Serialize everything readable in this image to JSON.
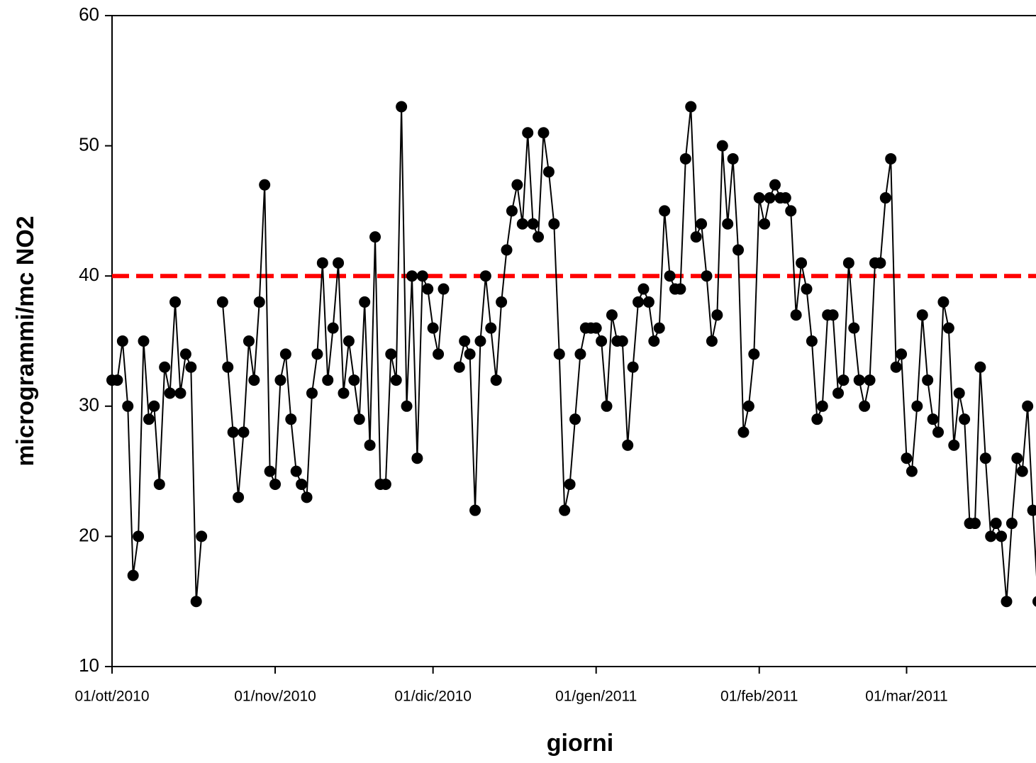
{
  "chart_data": {
    "type": "line",
    "x_label": "giorni",
    "y_label": "microgrammi/mc NO2",
    "x": [
      "2010-10-01",
      "2010-10-02",
      "2010-10-03",
      "2010-10-04",
      "2010-10-05",
      "2010-10-06",
      "2010-10-07",
      "2010-10-08",
      "2010-10-09",
      "2010-10-10",
      "2010-10-11",
      "2010-10-12",
      "2010-10-13",
      "2010-10-14",
      "2010-10-15",
      "2010-10-16",
      "2010-10-17",
      "2010-10-18",
      "2010-10-19",
      "2010-10-20",
      "2010-10-21",
      "2010-10-22",
      "2010-10-23",
      "2010-10-24",
      "2010-10-25",
      "2010-10-26",
      "2010-10-27",
      "2010-10-28",
      "2010-10-29",
      "2010-10-30",
      "2010-10-31",
      "2010-11-01",
      "2010-11-02",
      "2010-11-03",
      "2010-11-04",
      "2010-11-05",
      "2010-11-06",
      "2010-11-07",
      "2010-11-08",
      "2010-11-09",
      "2010-11-10",
      "2010-11-11",
      "2010-11-12",
      "2010-11-13",
      "2010-11-14",
      "2010-11-15",
      "2010-11-16",
      "2010-11-17",
      "2010-11-18",
      "2010-11-19",
      "2010-11-20",
      "2010-11-21",
      "2010-11-22",
      "2010-11-23",
      "2010-11-24",
      "2010-11-25",
      "2010-11-26",
      "2010-11-27",
      "2010-11-28",
      "2010-11-29",
      "2010-11-30",
      "2010-12-01",
      "2010-12-02",
      "2010-12-03",
      "2010-12-04",
      "2010-12-05",
      "2010-12-06",
      "2010-12-07",
      "2010-12-08",
      "2010-12-09",
      "2010-12-10",
      "2010-12-11",
      "2010-12-12",
      "2010-12-13",
      "2010-12-14",
      "2010-12-15",
      "2010-12-16",
      "2010-12-17",
      "2010-12-18",
      "2010-12-19",
      "2010-12-20",
      "2010-12-21",
      "2010-12-22",
      "2010-12-23",
      "2010-12-24",
      "2010-12-25",
      "2010-12-26",
      "2010-12-27",
      "2010-12-28",
      "2010-12-29",
      "2010-12-30",
      "2010-12-31",
      "2011-01-01",
      "2011-01-02",
      "2011-01-03",
      "2011-01-04",
      "2011-01-05",
      "2011-01-06",
      "2011-01-07",
      "2011-01-08",
      "2011-01-09",
      "2011-01-10",
      "2011-01-11",
      "2011-01-12",
      "2011-01-13",
      "2011-01-14",
      "2011-01-15",
      "2011-01-16",
      "2011-01-17",
      "2011-01-18",
      "2011-01-19",
      "2011-01-20",
      "2011-01-21",
      "2011-01-22",
      "2011-01-23",
      "2011-01-24",
      "2011-01-25",
      "2011-01-26",
      "2011-01-27",
      "2011-01-28",
      "2011-01-29",
      "2011-01-30",
      "2011-01-31",
      "2011-02-01",
      "2011-02-02",
      "2011-02-03",
      "2011-02-04",
      "2011-02-05",
      "2011-02-06",
      "2011-02-07",
      "2011-02-08",
      "2011-02-09",
      "2011-02-10",
      "2011-02-11",
      "2011-02-12",
      "2011-02-13",
      "2011-02-14",
      "2011-02-15",
      "2011-02-16",
      "2011-02-17",
      "2011-02-18",
      "2011-02-19",
      "2011-02-20",
      "2011-02-21",
      "2011-02-22",
      "2011-02-23",
      "2011-02-24",
      "2011-02-25",
      "2011-02-26",
      "2011-02-27",
      "2011-02-28",
      "2011-03-01",
      "2011-03-02",
      "2011-03-03",
      "2011-03-04",
      "2011-03-05",
      "2011-03-06",
      "2011-03-07",
      "2011-03-08",
      "2011-03-09",
      "2011-03-10",
      "2011-03-11",
      "2011-03-12",
      "2011-03-13",
      "2011-03-14",
      "2011-03-15",
      "2011-03-16",
      "2011-03-17",
      "2011-03-18",
      "2011-03-19",
      "2011-03-20",
      "2011-03-21",
      "2011-03-22",
      "2011-03-23",
      "2011-03-24",
      "2011-03-25",
      "2011-03-26"
    ],
    "values": [
      32,
      32,
      35,
      30,
      17,
      20,
      35,
      29,
      30,
      24,
      33,
      31,
      38,
      31,
      34,
      33,
      15,
      20,
      null,
      null,
      null,
      38,
      33,
      28,
      23,
      28,
      35,
      32,
      38,
      47,
      25,
      24,
      32,
      34,
      29,
      25,
      24,
      23,
      31,
      34,
      41,
      32,
      36,
      41,
      31,
      35,
      32,
      29,
      38,
      27,
      43,
      24,
      24,
      34,
      32,
      53,
      30,
      40,
      26,
      40,
      39,
      36,
      34,
      39,
      null,
      null,
      33,
      35,
      34,
      22,
      35,
      40,
      36,
      32,
      38,
      42,
      45,
      47,
      44,
      51,
      44,
      43,
      51,
      48,
      44,
      34,
      22,
      24,
      29,
      34,
      36,
      36,
      36,
      35,
      30,
      37,
      35,
      35,
      27,
      33,
      38,
      39,
      38,
      35,
      36,
      45,
      40,
      39,
      39,
      49,
      53,
      43,
      44,
      40,
      35,
      37,
      50,
      44,
      49,
      42,
      28,
      30,
      34,
      46,
      44,
      46,
      47,
      46,
      46,
      45,
      37,
      41,
      39,
      35,
      29,
      30,
      37,
      37,
      31,
      32,
      41,
      36,
      32,
      30,
      32,
      41,
      41,
      46,
      49,
      33,
      34,
      26,
      25,
      30,
      37,
      32,
      29,
      28,
      38,
      36,
      27,
      31,
      29,
      21,
      21,
      33,
      26,
      20,
      21,
      20,
      15,
      21,
      26,
      25,
      30,
      22,
      15
    ],
    "color": "#000000",
    "threshold": 40,
    "threshold_color": "#ff0000",
    "xlim": [
      "2010-10-01",
      "2011-03-26"
    ],
    "xticks": [
      {
        "value": "2010-10-01",
        "label": "01/ott/2010"
      },
      {
        "value": "2010-11-01",
        "label": "01/nov/2010"
      },
      {
        "value": "2010-12-01",
        "label": "01/dic/2010"
      },
      {
        "value": "2011-01-01",
        "label": "01/gen/2011"
      },
      {
        "value": "2011-02-01",
        "label": "01/feb/2011"
      },
      {
        "value": "2011-03-01",
        "label": "01/mar/2011"
      }
    ],
    "ylim": [
      10,
      60
    ],
    "yticks": [
      10,
      20,
      30,
      40,
      50,
      60
    ],
    "grid": false
  }
}
